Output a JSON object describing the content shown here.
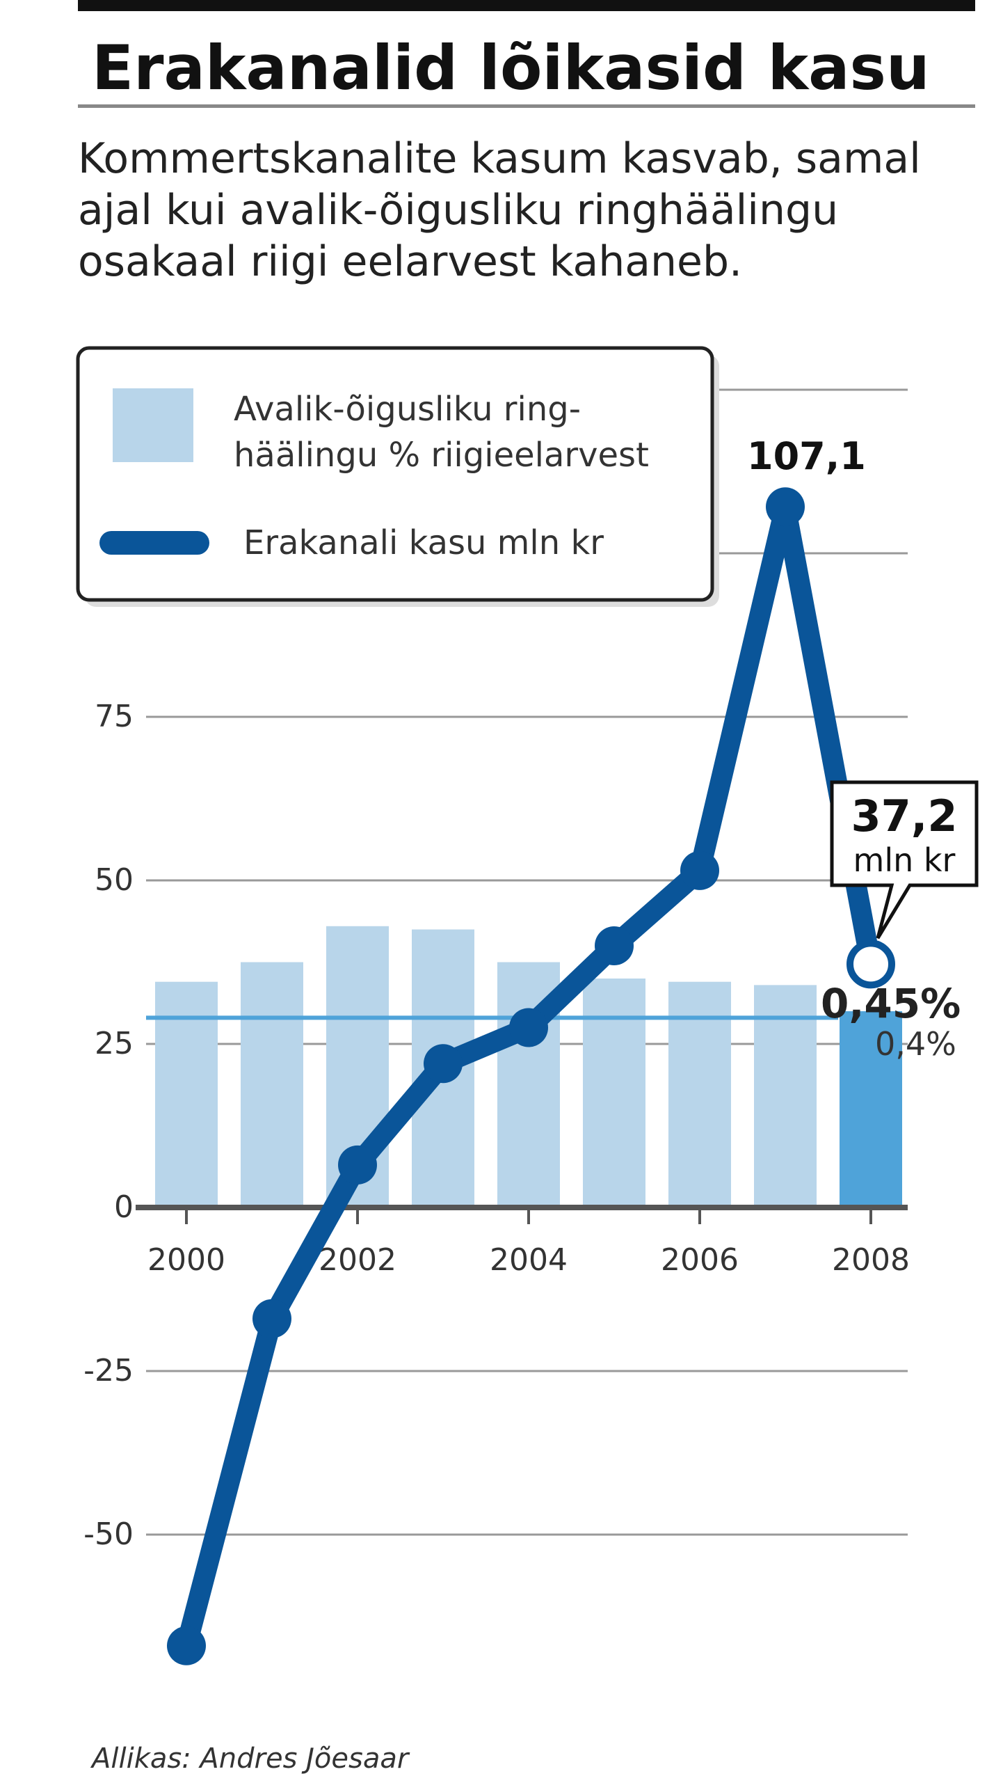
{
  "title": "Erakanalid lõikasid kasu",
  "subtitle_lines": [
    "Kommertskanalite kasum kasvab, samal",
    "ajal kui avalik-õigusliku ringhäälingu",
    "osakaal riigi eelarvest kahaneb."
  ],
  "legend": {
    "bar_label_lines": [
      "Avalik-õigusliku ring-",
      "häälingu % riigieelarvest"
    ],
    "line_label": "Erakanali kasu mln kr"
  },
  "source": "Allikas: Andres Jõesaar",
  "colors": {
    "bar": "#b8d5ea",
    "bar_highlight": "#4fa3d9",
    "line": "#0a5599",
    "reference_line": "#4fa3d9",
    "grid": "#999999"
  },
  "chart_data": {
    "type": "bar+line",
    "x_tick_labels": [
      "2000",
      "2002",
      "2004",
      "2006",
      "2008"
    ],
    "y_tick_labels": [
      "-50",
      "-25",
      "0",
      "25",
      "50",
      "75"
    ],
    "ylim": [
      -70,
      125
    ],
    "years": [
      2000,
      2001,
      2002,
      2003,
      2004,
      2005,
      2006,
      2007,
      2008
    ],
    "series": [
      {
        "kind": "bar",
        "values": [
          34.5,
          37.5,
          43,
          42.5,
          37.5,
          35,
          34.5,
          34,
          30
        ]
      },
      {
        "kind": "line",
        "values": [
          -67,
          -17,
          6.5,
          22,
          27.5,
          40,
          51.5,
          107.1,
          37.2
        ]
      }
    ],
    "reference_line_value": 29,
    "annotations": {
      "peak_label": "107,1",
      "last_value_big": "37,2",
      "last_value_unit": "mln kr",
      "pct_big": "0,45%",
      "pct_small": "0,4%"
    }
  }
}
